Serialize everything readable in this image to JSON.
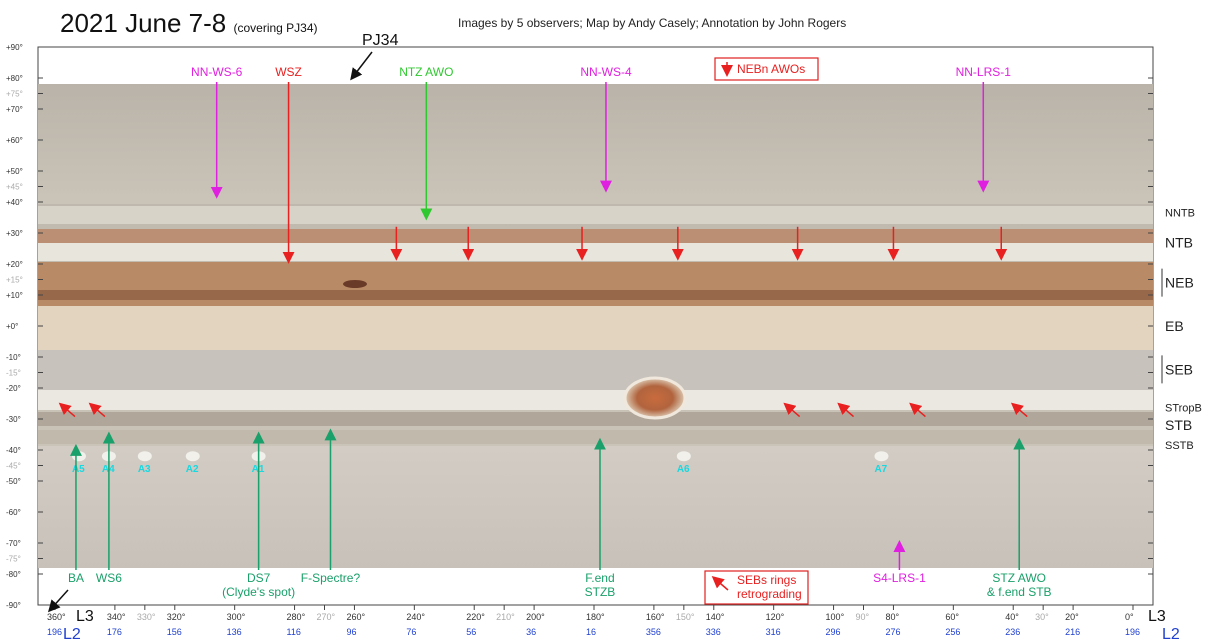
{
  "header": {
    "title": "2021 June 7-8",
    "subtitle": "(covering PJ34)",
    "credits": "Images by 5 observers;  Map by Andy Casely;  Annotation by John Rogers"
  },
  "pj_label": "PJ34",
  "colors": {
    "red": "#e82020",
    "magenta": "#e020e0",
    "green": "#1aa06a",
    "lime": "#30c830",
    "cyan": "#18d8e0",
    "blue": "#2040d0"
  },
  "lat_axis": [
    {
      "label": "+90°",
      "lat": 90
    },
    {
      "label": "+80°",
      "lat": 80
    },
    {
      "label": "+75°",
      "lat": 75,
      "minor": true
    },
    {
      "label": "+70°",
      "lat": 70
    },
    {
      "label": "+60°",
      "lat": 60
    },
    {
      "label": "+50°",
      "lat": 50
    },
    {
      "label": "+45°",
      "lat": 45,
      "minor": true
    },
    {
      "label": "+40°",
      "lat": 40
    },
    {
      "label": "+30°",
      "lat": 30
    },
    {
      "label": "+20°",
      "lat": 20
    },
    {
      "label": "+15°",
      "lat": 15,
      "minor": true
    },
    {
      "label": "+10°",
      "lat": 10
    },
    {
      "label": "+0°",
      "lat": 0
    },
    {
      "label": "-10°",
      "lat": -10
    },
    {
      "label": "-15°",
      "lat": -15,
      "minor": true
    },
    {
      "label": "-20°",
      "lat": -20
    },
    {
      "label": "-30°",
      "lat": -30
    },
    {
      "label": "-40°",
      "lat": -40
    },
    {
      "label": "-45°",
      "lat": -45,
      "minor": true
    },
    {
      "label": "-50°",
      "lat": -50
    },
    {
      "label": "-60°",
      "lat": -60
    },
    {
      "label": "-70°",
      "lat": -70
    },
    {
      "label": "-75°",
      "lat": -75,
      "minor": true
    },
    {
      "label": "-80°",
      "lat": -80
    },
    {
      "label": "-90°",
      "lat": -90
    }
  ],
  "belts": [
    {
      "label": "NNTB",
      "lat": 37,
      "small": true
    },
    {
      "label": "NTB",
      "lat": 27
    },
    {
      "label": "NEB",
      "lat": 14,
      "bar": true
    },
    {
      "label": "EB",
      "lat": 0
    },
    {
      "label": "SEB",
      "lat": -14,
      "bar": true
    },
    {
      "label": "STropB",
      "lat": -26,
      "small": true
    },
    {
      "label": "STB",
      "lat": -32
    },
    {
      "label": "SSTB",
      "lat": -38,
      "small": true
    }
  ],
  "l3_ticks": [
    {
      "label": "360°",
      "lon": 360
    },
    {
      "label": "340°",
      "lon": 340
    },
    {
      "label": "330°",
      "lon": 330,
      "minor": true
    },
    {
      "label": "320°",
      "lon": 320
    },
    {
      "label": "300°",
      "lon": 300
    },
    {
      "label": "280°",
      "lon": 280
    },
    {
      "label": "270°",
      "lon": 270,
      "minor": true
    },
    {
      "label": "260°",
      "lon": 260
    },
    {
      "label": "240°",
      "lon": 240
    },
    {
      "label": "220°",
      "lon": 220
    },
    {
      "label": "210°",
      "lon": 210,
      "minor": true
    },
    {
      "label": "200°",
      "lon": 200
    },
    {
      "label": "180°",
      "lon": 180
    },
    {
      "label": "160°",
      "lon": 160
    },
    {
      "label": "150°",
      "lon": 150,
      "minor": true
    },
    {
      "label": "140°",
      "lon": 140
    },
    {
      "label": "120°",
      "lon": 120
    },
    {
      "label": "100°",
      "lon": 100
    },
    {
      "label": "90°",
      "lon": 90,
      "minor": true
    },
    {
      "label": "80°",
      "lon": 80
    },
    {
      "label": "60°",
      "lon": 60
    },
    {
      "label": "40°",
      "lon": 40
    },
    {
      "label": "30°",
      "lon": 30,
      "minor": true
    },
    {
      "label": "20°",
      "lon": 20
    },
    {
      "label": "0°",
      "lon": 0
    }
  ],
  "l2_ticks": [
    {
      "label": "196",
      "lon": 360
    },
    {
      "label": "176",
      "lon": 340
    },
    {
      "label": "156",
      "lon": 320
    },
    {
      "label": "136",
      "lon": 300
    },
    {
      "label": "116",
      "lon": 280
    },
    {
      "label": "96",
      "lon": 260
    },
    {
      "label": "76",
      "lon": 240
    },
    {
      "label": "56",
      "lon": 220
    },
    {
      "label": "36",
      "lon": 200
    },
    {
      "label": "16",
      "lon": 180
    },
    {
      "label": "356",
      "lon": 160
    },
    {
      "label": "336",
      "lon": 140
    },
    {
      "label": "316",
      "lon": 120
    },
    {
      "label": "296",
      "lon": 100
    },
    {
      "label": "276",
      "lon": 80
    },
    {
      "label": "256",
      "lon": 60
    },
    {
      "label": "236",
      "lon": 40
    },
    {
      "label": "216",
      "lon": 20
    },
    {
      "label": "196",
      "lon": 0
    }
  ],
  "system_labels": {
    "l3": "L3",
    "l2": "L2"
  },
  "top_annotations": [
    {
      "label": "NN-WS-6",
      "color": "magenta",
      "lon": 306,
      "to_lat": 42
    },
    {
      "label": "WSZ",
      "color": "red",
      "lon": 282,
      "to_lat": 21
    },
    {
      "label": "NTZ AWO",
      "color": "lime",
      "lon": 236,
      "to_lat": 35
    },
    {
      "label": "NN-WS-4",
      "color": "magenta",
      "lon": 176,
      "to_lat": 44
    },
    {
      "label": "NN-LRS-1",
      "color": "magenta",
      "lon": 50,
      "to_lat": 44
    }
  ],
  "legend_awo": {
    "label": "NEBn AWOs"
  },
  "awo_arrows": [
    246,
    222,
    184,
    152,
    112,
    80,
    44
  ],
  "bottom_annotations": [
    {
      "lines": [
        "BA"
      ],
      "color": "green",
      "lon": 353,
      "to_lat": -39
    },
    {
      "lines": [
        "WS6"
      ],
      "color": "green",
      "lon": 342,
      "to_lat": -35
    },
    {
      "lines": [
        "DS7",
        "(Clyde's spot)"
      ],
      "color": "green",
      "lon": 292,
      "to_lat": -35
    },
    {
      "lines": [
        "F-Spectre?"
      ],
      "color": "green",
      "lon": 268,
      "to_lat": -34
    },
    {
      "lines": [
        "F.end",
        "STZB"
      ],
      "color": "green",
      "lon": 178,
      "to_lat": -37
    },
    {
      "lines": [
        "S4-LRS-1"
      ],
      "color": "magenta",
      "lon": 78,
      "to_lat": -70
    },
    {
      "lines": [
        "STZ AWO",
        "& f.end STB"
      ],
      "color": "green",
      "lon": 38,
      "to_lat": -37
    }
  ],
  "legend_sebs": {
    "lines": [
      "SEBs rings",
      "retrograding"
    ]
  },
  "sebs_arrows": [
    358,
    348,
    116,
    98,
    74,
    40
  ],
  "ovals": [
    {
      "label": "A5",
      "lon": 352
    },
    {
      "label": "A4",
      "lon": 342
    },
    {
      "label": "A3",
      "lon": 330
    },
    {
      "label": "A2",
      "lon": 314
    },
    {
      "label": "A1",
      "lon": 292
    },
    {
      "label": "A6",
      "lon": 150
    },
    {
      "label": "A7",
      "lon": 84
    }
  ]
}
